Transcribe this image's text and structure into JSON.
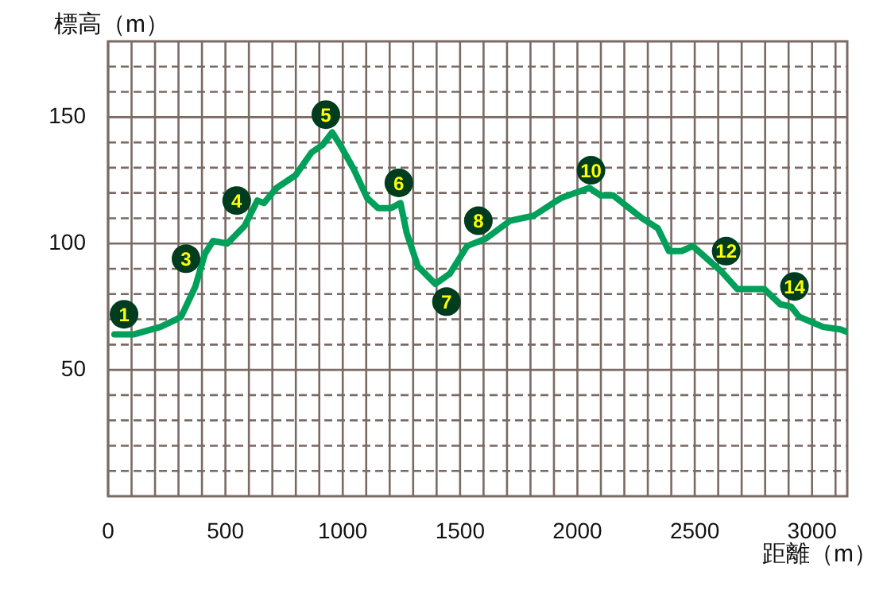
{
  "chart_data": {
    "type": "line",
    "xlabel": "距離（m）",
    "ylabel": "標高（m）",
    "x": [
      27,
      108,
      223,
      291,
      311,
      372,
      413,
      447,
      508,
      582,
      636,
      664,
      718,
      799,
      867,
      914,
      955,
      989,
      1049,
      1104,
      1151,
      1205,
      1246,
      1273,
      1320,
      1395,
      1456,
      1530,
      1611,
      1713,
      1814,
      1930,
      2051,
      2099,
      2153,
      2275,
      2343,
      2390,
      2444,
      2492,
      2613,
      2681,
      2796,
      2864,
      2911,
      2945,
      3047,
      3121,
      3150
    ],
    "series": [
      {
        "color": "#00a05a",
        "values": [
          64,
          64,
          67,
          70,
          71,
          83,
          96,
          101,
          100,
          107,
          117,
          116,
          122,
          127,
          136,
          139,
          144,
          139,
          129,
          118,
          114,
          114,
          116,
          104,
          91,
          84,
          88,
          99,
          102,
          109,
          111,
          118,
          122,
          119,
          119,
          110,
          106,
          97,
          97,
          99,
          89,
          82,
          82,
          76,
          75,
          71,
          67,
          66,
          65
        ]
      }
    ],
    "xlim": [
      0,
      3150
    ],
    "xticks": [
      0,
      {
        "value": 100,
        "label": null
      },
      {
        "value": 200,
        "label": null
      },
      {
        "value": 300,
        "label": null
      },
      {
        "value": 400,
        "label": null
      },
      500,
      {
        "value": 600,
        "label": null
      },
      {
        "value": 700,
        "label": null
      },
      {
        "value": 800,
        "label": null
      },
      {
        "value": 900,
        "label": null
      },
      1000,
      {
        "value": 1100,
        "label": null
      },
      {
        "value": 1200,
        "label": null
      },
      {
        "value": 1300,
        "label": null
      },
      {
        "value": 1400,
        "label": null
      },
      1500,
      {
        "value": 1600,
        "label": null
      },
      {
        "value": 1700,
        "label": null
      },
      {
        "value": 1800,
        "label": null
      },
      {
        "value": 1900,
        "label": null
      },
      2000,
      {
        "value": 2100,
        "label": null
      },
      {
        "value": 2200,
        "label": null
      },
      {
        "value": 2300,
        "label": null
      },
      {
        "value": 2400,
        "label": null
      },
      2500,
      {
        "value": 2600,
        "label": null
      },
      {
        "value": 2700,
        "label": null
      },
      {
        "value": 2800,
        "label": null
      },
      {
        "value": 2900,
        "label": null
      },
      3000,
      {
        "value": 3100,
        "label": null
      }
    ],
    "ylim": [
      0,
      180
    ],
    "yticks": [
      {
        "value": 10,
        "label": null
      },
      {
        "value": 20,
        "label": null
      },
      {
        "value": 30,
        "label": null
      },
      {
        "value": 40,
        "label": null
      },
      50,
      {
        "value": 60,
        "label": null
      },
      {
        "value": 70,
        "label": null
      },
      {
        "value": 80,
        "label": null
      },
      {
        "value": 90,
        "label": null
      },
      100,
      {
        "value": 110,
        "label": null
      },
      {
        "value": 120,
        "label": null
      },
      {
        "value": 130,
        "label": null
      },
      {
        "value": 140,
        "label": null
      },
      150,
      {
        "value": 160,
        "label": null
      },
      {
        "value": 170,
        "label": null
      }
    ],
    "grid": true,
    "legend": false,
    "marker": "none",
    "line_style": "solid",
    "annotations": [
      {
        "text": "1",
        "x": 68,
        "y": 72
      },
      {
        "text": "3",
        "x": 332,
        "y": 94
      },
      {
        "text": "4",
        "x": 548,
        "y": 117
      },
      {
        "text": "5",
        "x": 928,
        "y": 151
      },
      {
        "text": "6",
        "x": 1239,
        "y": 124
      },
      {
        "text": "7",
        "x": 1442,
        "y": 77
      },
      {
        "text": "8",
        "x": 1578,
        "y": 109
      },
      {
        "text": "10",
        "x": 2058,
        "y": 129
      },
      {
        "text": "12",
        "x": 2634,
        "y": 97
      },
      {
        "text": "14",
        "x": 2925,
        "y": 83
      }
    ]
  }
}
